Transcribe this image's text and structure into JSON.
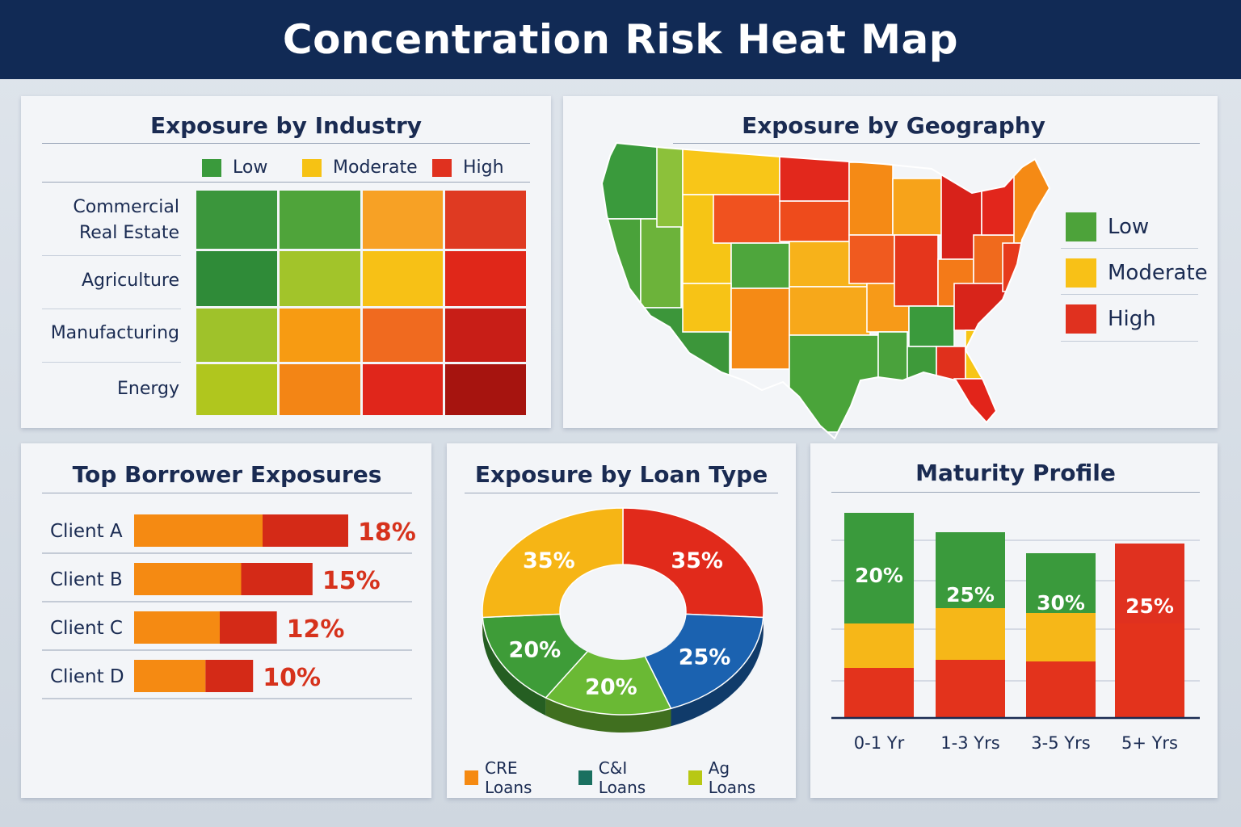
{
  "page_title": "Concentration Risk Heat Map",
  "colors": {
    "low": "#3a9a3c",
    "moderate": "#f6c214",
    "high": "#e0311f",
    "orange": "#f58a12",
    "blue": "#1b62b0",
    "teal": "#1a7060",
    "lime": "#b8c814"
  },
  "chart_data": [
    {
      "type": "heatmap",
      "title": "Exposure by Industry",
      "legend": [
        "Low",
        "Moderate",
        "High"
      ],
      "rows": [
        "Commercial Real Estate",
        "Agriculture",
        "Manufacturing",
        "Energy"
      ],
      "cell_colors": [
        [
          "#3b963c",
          "#4fa43a",
          "#f7a125",
          "#df3a22"
        ],
        [
          "#2f8b38",
          "#a2c42a",
          "#f7c116",
          "#e02719"
        ],
        [
          "#9fc22a",
          "#f79b12",
          "#f06a1f",
          "#c81e17"
        ],
        [
          "#b0c61e",
          "#f38515",
          "#e0261b",
          "#a6140f"
        ]
      ]
    },
    {
      "type": "map",
      "title": "Exposure by Geography",
      "legend": [
        "Low",
        "Moderate",
        "High"
      ]
    },
    {
      "type": "bar",
      "title": "Top Borrower Exposures",
      "categories": [
        "Client A",
        "Client B",
        "Client C",
        "Client D"
      ],
      "values": [
        18,
        15,
        12,
        10
      ],
      "labels": [
        "18%",
        "15%",
        "12%",
        "10%"
      ]
    },
    {
      "type": "pie",
      "title": "Exposure by Loan Type",
      "slices": [
        {
          "value": 35,
          "label": "35%",
          "color": "#e12a1b"
        },
        {
          "value": 25,
          "label": "25%",
          "color": "#1b62b0"
        },
        {
          "value": 20,
          "label": "20%",
          "color": "#6ab934"
        },
        {
          "value": 20,
          "label": "20%",
          "color": "#3e9c38"
        },
        {
          "value": 35,
          "label": "35%",
          "color": "#f6b515"
        }
      ],
      "legend": [
        {
          "label": "CRE Loans",
          "color": "#f58a12"
        },
        {
          "label": "C&I Loans",
          "color": "#1a7060"
        },
        {
          "label": "Ag Loans",
          "color": "#b8c814"
        }
      ]
    },
    {
      "type": "bar",
      "title": "Maturity Profile",
      "categories": [
        "0-1 Yr",
        "1-3 Yrs",
        "3-5 Yrs",
        "5+ Yrs"
      ],
      "labels": [
        "20%",
        "25%",
        "30%",
        "25%"
      ],
      "top_colors": [
        "#3a9a3c",
        "#3a9a3c",
        "#3a9a3c",
        "#e0311f"
      ]
    }
  ]
}
